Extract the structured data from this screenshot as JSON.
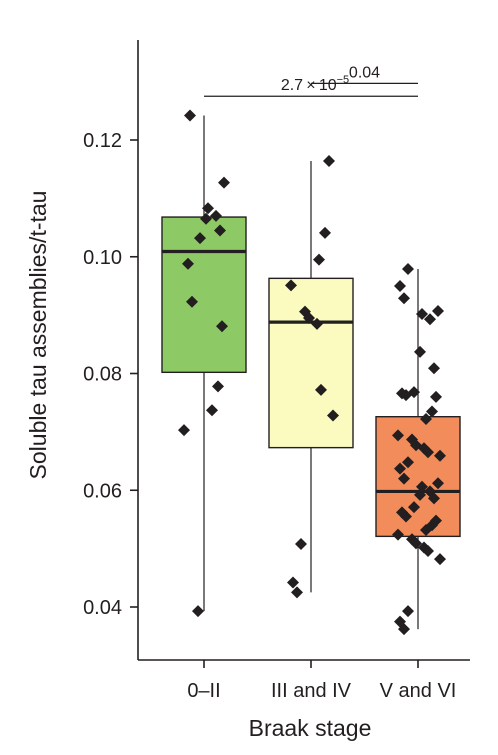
{
  "chart_data": {
    "type": "box",
    "xlabel": "Braak stage",
    "ylabel": "Soluble tau assemblies/t-tau",
    "ylim": [
      0.034,
      0.1355
    ],
    "yticks": [
      0.04,
      0.06,
      0.08,
      0.1,
      0.12
    ],
    "ytick_labels": [
      "0.04",
      "0.06",
      "0.08",
      "0.10",
      "0.12"
    ],
    "grid": false,
    "categories": [
      "0–II",
      "III and IV",
      "V and VI"
    ],
    "boxes": [
      {
        "category": "0–II",
        "color": "#8dc965",
        "min": 0.0393,
        "q1": 0.0802,
        "median": 0.1009,
        "q3": 0.1068,
        "max": 0.1242,
        "points": [
          0.1242,
          0.1127,
          0.1083,
          0.107,
          0.1065,
          0.1045,
          0.1032,
          0.0988,
          0.0923,
          0.0881,
          0.0778,
          0.0737,
          0.0703,
          0.0393
        ]
      },
      {
        "category": "III and IV",
        "color": "#fbfbc0",
        "min": 0.0425,
        "q1": 0.0673,
        "median": 0.0888,
        "q3": 0.0963,
        "max": 0.1164,
        "points": [
          0.1164,
          0.1041,
          0.0995,
          0.0951,
          0.0906,
          0.0895,
          0.0885,
          0.0772,
          0.0728,
          0.0508,
          0.0442,
          0.0425
        ]
      },
      {
        "category": "V and VI",
        "color": "#f28c5a",
        "min": 0.0362,
        "q1": 0.0521,
        "median": 0.0598,
        "q3": 0.0726,
        "max": 0.0979,
        "points": [
          0.0979,
          0.095,
          0.0929,
          0.0907,
          0.0902,
          0.0893,
          0.0837,
          0.0809,
          0.0768,
          0.0766,
          0.0763,
          0.076,
          0.0735,
          0.0722,
          0.0694,
          0.0687,
          0.0677,
          0.0672,
          0.0665,
          0.0659,
          0.0648,
          0.0637,
          0.062,
          0.0612,
          0.0606,
          0.0598,
          0.0592,
          0.0586,
          0.0571,
          0.0562,
          0.0555,
          0.0548,
          0.054,
          0.0532,
          0.0524,
          0.0516,
          0.0509,
          0.0502,
          0.0496,
          0.0482,
          0.0393,
          0.0375,
          0.0362
        ]
      }
    ],
    "significance": [
      {
        "from": 1,
        "to": 2,
        "label": "0.04",
        "y": 0.1297
      },
      {
        "from": 0,
        "to": 2,
        "label": "2.7 × 10",
        "sup": "−5",
        "y": 0.1275
      }
    ]
  }
}
